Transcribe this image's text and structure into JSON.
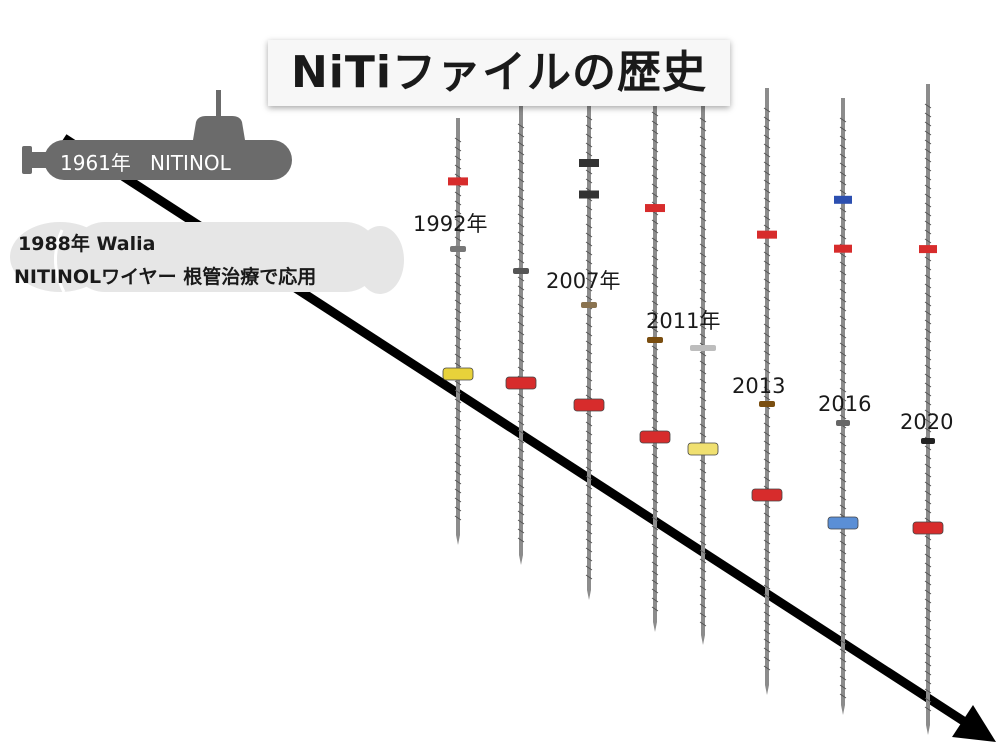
{
  "title": "NiTiファイルの歴史",
  "events": {
    "nitinol": {
      "year": "1961年",
      "name": "NITINOL"
    },
    "walia": {
      "line1": "1988年 Walia",
      "line2": "NITINOLワイヤー 根管治療で応用"
    }
  },
  "files": [
    {
      "year": "1992年",
      "ring_color": "#e8d23a"
    },
    {
      "year": "2007年",
      "ring_color": "#d72c2c"
    },
    {
      "year": "",
      "ring_color": "#d72c2c"
    },
    {
      "year": "2011年",
      "ring_color": "#d72c2c"
    },
    {
      "year": "",
      "ring_color": "#f0e070"
    },
    {
      "year": "2013",
      "ring_color": "#d72c2c"
    },
    {
      "year": "2016",
      "ring_color": "#5b8fd6"
    },
    {
      "year": "2020",
      "ring_color": "#d72c2c"
    }
  ],
  "colors": {
    "arrow": "#000000",
    "submarine": "#6b6b6b",
    "cloud": "#e6e6e6"
  },
  "icons": {
    "submarine": "submarine-icon",
    "cloud": "cloud-shape"
  }
}
